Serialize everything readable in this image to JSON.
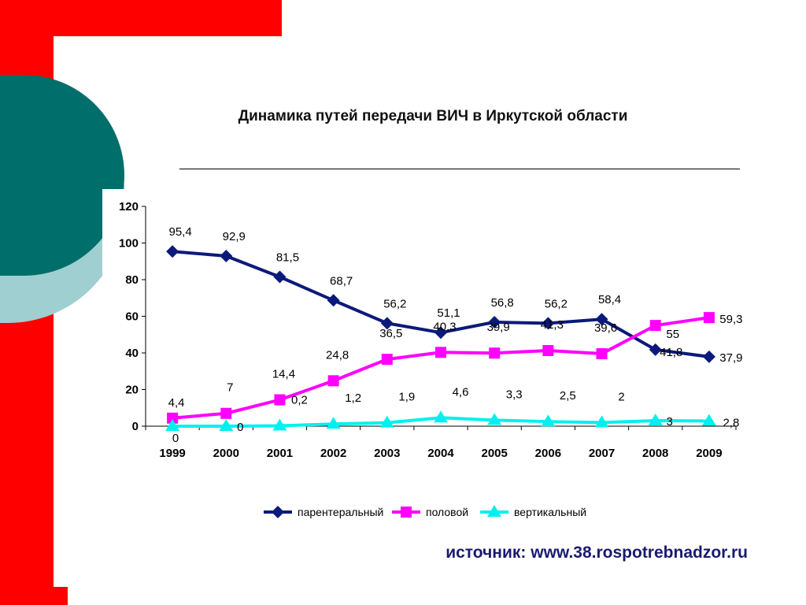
{
  "slide": {
    "title": "Динамика путей передачи ВИЧ в Иркутской области",
    "source": "источник: www.38.rospotrebnadzor.ru"
  },
  "colors": {
    "red": "#ff0000",
    "teal": "#006e6a",
    "light_teal": "#9fcfd0",
    "navy": "#0b1a7a",
    "magenta": "#ff00ff",
    "cyan": "#00f0f0"
  },
  "chart_data": {
    "type": "line",
    "title": "",
    "xlabel": "",
    "ylabel": "",
    "categories": [
      "1999",
      "2000",
      "2001",
      "2002",
      "2003",
      "2004",
      "2005",
      "2006",
      "2007",
      "2008",
      "2009"
    ],
    "ylim": [
      0,
      120
    ],
    "yticks": [
      0,
      20,
      40,
      60,
      80,
      100,
      120
    ],
    "grid": false,
    "legend_position": "bottom",
    "series": [
      {
        "name": "парентеральный",
        "marker": "diamond",
        "color": "#0b1a7a",
        "values": [
          95.4,
          92.9,
          81.5,
          68.7,
          56.2,
          51.1,
          56.8,
          56.2,
          58.4,
          41.8,
          37.9
        ],
        "labels": [
          "95,4",
          "92,9",
          "81,5",
          "68,7",
          "56,2",
          "51,1",
          "56,8",
          "56,2",
          "58,4",
          "41,8",
          "37,9"
        ]
      },
      {
        "name": "половой",
        "marker": "square",
        "color": "#ff00ff",
        "values": [
          4.4,
          7,
          14.4,
          24.8,
          36.5,
          40.3,
          39.9,
          41.3,
          39.6,
          55,
          59.3
        ],
        "labels": [
          "4,4",
          "7",
          "14,4",
          "24,8",
          "36,5",
          "40,3",
          "39,9",
          "41,3",
          "39,6",
          "55",
          "59,3"
        ]
      },
      {
        "name": "вертикальный",
        "marker": "triangle",
        "color": "#00f0f0",
        "values": [
          0,
          0,
          0.2,
          1.2,
          1.9,
          4.6,
          3.3,
          2.5,
          2,
          3,
          2.8
        ],
        "labels": [
          "0",
          "0",
          "0,2",
          "1,2",
          "1,9",
          "4,6",
          "3,3",
          "2,5",
          "2",
          "3",
          "2,8"
        ]
      }
    ]
  }
}
